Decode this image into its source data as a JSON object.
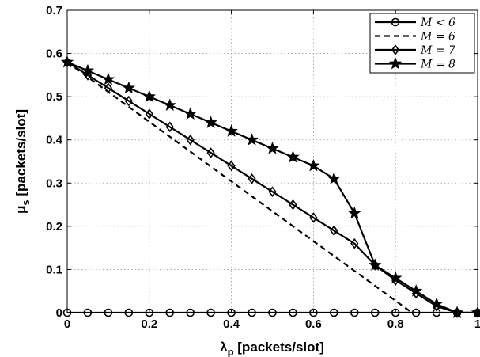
{
  "chart_data": {
    "type": "line",
    "xlabel": "λ",
    "xlabel_sub": "p",
    "xlabel_unit": " [packets/slot]",
    "ylabel": "μ",
    "ylabel_sub": "s",
    "ylabel_unit": " [packets/slot]",
    "xlim": [
      0,
      1
    ],
    "ylim": [
      0,
      0.7
    ],
    "xticks": [
      0,
      0.2,
      0.4,
      0.6,
      0.8,
      1
    ],
    "xtick_labels": [
      "0",
      "0.2",
      "0.4",
      "0.6",
      "0.8",
      "1"
    ],
    "yticks": [
      0,
      0.1,
      0.2,
      0.3,
      0.4,
      0.5,
      0.6,
      0.7
    ],
    "ytick_labels": [
      "0",
      "0.1",
      "0.2",
      "0.3",
      "0.4",
      "0.5",
      "0.6",
      "0.7"
    ],
    "grid": true,
    "legend_position": "top-right",
    "series": [
      {
        "name": "M < 6",
        "marker": "circle",
        "dash": "solid",
        "x": [
          0,
          0.05,
          0.1,
          0.15,
          0.2,
          0.25,
          0.3,
          0.35,
          0.4,
          0.45,
          0.5,
          0.55,
          0.6,
          0.65,
          0.7,
          0.75,
          0.8,
          0.85,
          0.9,
          0.95,
          1.0
        ],
        "y": [
          0,
          0,
          0,
          0,
          0,
          0,
          0,
          0,
          0,
          0,
          0,
          0,
          0,
          0,
          0,
          0,
          0,
          0,
          0,
          0,
          0
        ]
      },
      {
        "name": "M = 6",
        "marker": "none",
        "dash": "dashed",
        "x": [
          0,
          0.84
        ],
        "y": [
          0.58,
          0
        ]
      },
      {
        "name": "M = 7",
        "marker": "diamond",
        "dash": "solid",
        "x": [
          0,
          0.05,
          0.1,
          0.15,
          0.2,
          0.25,
          0.3,
          0.35,
          0.4,
          0.45,
          0.5,
          0.55,
          0.6,
          0.65,
          0.7,
          0.75,
          0.8,
          0.85,
          0.9,
          0.95,
          1.0
        ],
        "y": [
          0.58,
          0.55,
          0.52,
          0.49,
          0.46,
          0.43,
          0.4,
          0.37,
          0.34,
          0.31,
          0.28,
          0.25,
          0.22,
          0.19,
          0.16,
          0.11,
          0.075,
          0.045,
          0.015,
          0,
          0
        ]
      },
      {
        "name": "M = 8",
        "marker": "star",
        "dash": "solid",
        "x": [
          0,
          0.05,
          0.1,
          0.15,
          0.2,
          0.25,
          0.3,
          0.35,
          0.4,
          0.45,
          0.5,
          0.55,
          0.6,
          0.65,
          0.7,
          0.75,
          0.8,
          0.85,
          0.9,
          0.95,
          1.0
        ],
        "y": [
          0.58,
          0.56,
          0.54,
          0.52,
          0.5,
          0.48,
          0.46,
          0.44,
          0.42,
          0.4,
          0.38,
          0.36,
          0.34,
          0.31,
          0.23,
          0.11,
          0.08,
          0.05,
          0.02,
          0,
          0
        ]
      }
    ]
  }
}
